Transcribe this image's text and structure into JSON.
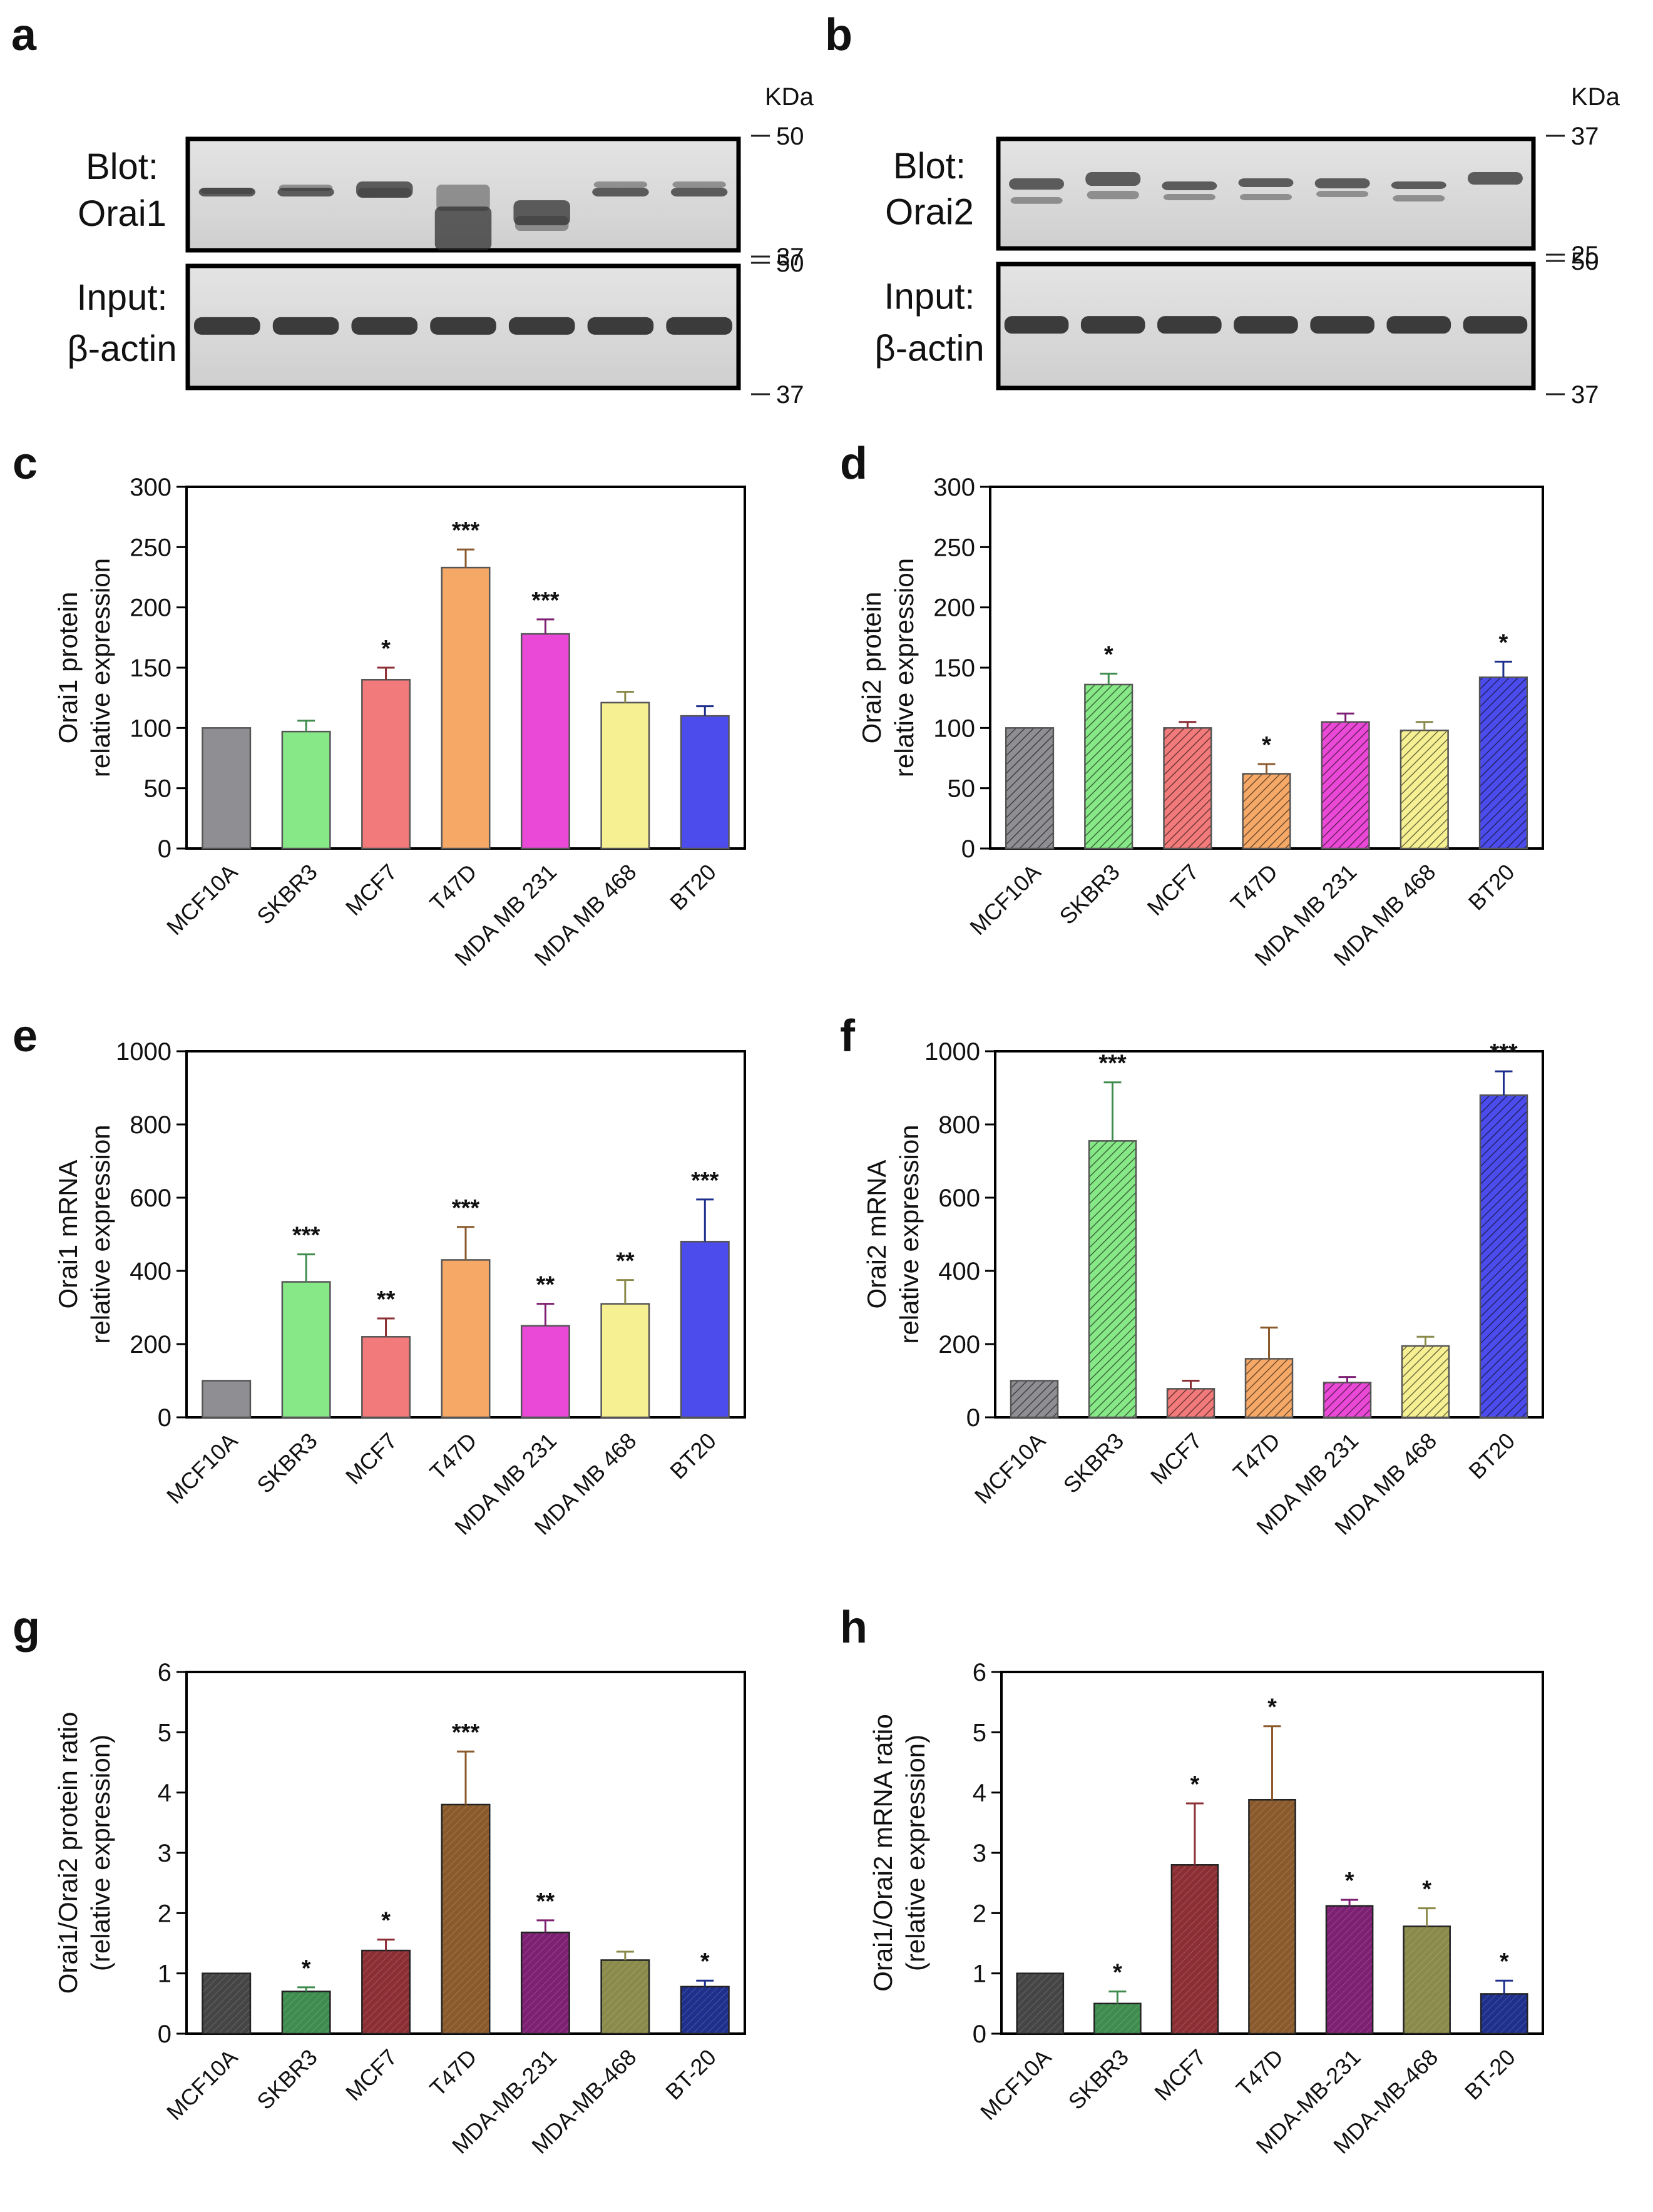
{
  "colors": {
    "MCF10A": "#8f8f93",
    "SKBR3": "#86e886",
    "MCF7": "#f27a7a",
    "T47D": "#f6a867",
    "MDA MB 231": "#ea48d6",
    "MDA MB 468": "#f6f092",
    "BT20": "#4c4cec"
  },
  "colors_dark": {
    "MCF10A": "#454545",
    "SKBR3": "#3f8c4f",
    "MCF7": "#8c2f35",
    "T47D": "#8a5a2c",
    "MDA MB 231": "#7d1f72",
    "MDA MB 468": "#8a8a4a",
    "BT20": "#1f2f8c"
  },
  "blots": [
    {
      "panel": "a",
      "kda": "KDa",
      "top": {
        "label1": "Blot:",
        "label2": "Orai1",
        "markers": [
          "50",
          "37"
        ]
      },
      "bottom": {
        "label1": "Input:",
        "label2": "β-actin",
        "markers": [
          "50",
          "37"
        ]
      }
    },
    {
      "panel": "b",
      "kda": "KDa",
      "top": {
        "label1": "Blot:",
        "label2": "Orai2",
        "markers": [
          "37",
          "25"
        ]
      },
      "bottom": {
        "label1": "Input:",
        "label2": "β-actin",
        "markers": [
          "50",
          "37"
        ]
      }
    }
  ],
  "chart_data": [
    {
      "panel": "c",
      "type": "bar",
      "ylabel": [
        "Orai1 protein",
        "relative expression"
      ],
      "ylim": [
        0,
        300
      ],
      "yticks": [
        0,
        50,
        100,
        150,
        200,
        250,
        300
      ],
      "categories": [
        "MCF10A",
        "SKBR3",
        "MCF7",
        "T47D",
        "MDA MB 231",
        "MDA MB 468",
        "BT20"
      ],
      "values": [
        100,
        97,
        140,
        233,
        178,
        121,
        110
      ],
      "errors": [
        0,
        9,
        10,
        15,
        12,
        9,
        8
      ],
      "significance": [
        "",
        "",
        "*",
        "***",
        "***",
        "",
        ""
      ],
      "style": "solid"
    },
    {
      "panel": "d",
      "type": "bar",
      "ylabel": [
        "Orai2 protein",
        "relative expression"
      ],
      "ylim": [
        0,
        300
      ],
      "yticks": [
        0,
        50,
        100,
        150,
        200,
        250,
        300
      ],
      "categories": [
        "MCF10A",
        "SKBR3",
        "MCF7",
        "T47D",
        "MDA MB 231",
        "MDA MB 468",
        "BT20"
      ],
      "values": [
        100,
        136,
        100,
        62,
        105,
        98,
        142
      ],
      "errors": [
        0,
        9,
        5,
        8,
        7,
        7,
        13
      ],
      "significance": [
        "",
        "*",
        "",
        "*",
        "",
        "",
        "*"
      ],
      "style": "hatched"
    },
    {
      "panel": "e",
      "type": "bar",
      "ylabel": [
        "Orai1 mRNA",
        "relative expression"
      ],
      "ylim": [
        0,
        1000
      ],
      "yticks": [
        0,
        200,
        400,
        600,
        800,
        1000
      ],
      "categories": [
        "MCF10A",
        "SKBR3",
        "MCF7",
        "T47D",
        "MDA MB 231",
        "MDA MB 468",
        "BT20"
      ],
      "values": [
        100,
        370,
        220,
        430,
        250,
        310,
        480
      ],
      "errors": [
        0,
        75,
        50,
        90,
        60,
        65,
        115
      ],
      "significance": [
        "",
        "***",
        "**",
        "***",
        "**",
        "**",
        "***"
      ],
      "style": "solid"
    },
    {
      "panel": "f",
      "type": "bar",
      "ylabel": [
        "Orai2 mRNA",
        "relative expression"
      ],
      "ylim": [
        0,
        1000
      ],
      "yticks": [
        0,
        200,
        400,
        600,
        800,
        1000
      ],
      "categories": [
        "MCF10A",
        "SKBR3",
        "MCF7",
        "T47D",
        "MDA MB 231",
        "MDA MB 468",
        "BT20"
      ],
      "values": [
        100,
        755,
        78,
        160,
        95,
        195,
        880
      ],
      "errors": [
        0,
        160,
        22,
        85,
        15,
        25,
        65
      ],
      "significance": [
        "",
        "***",
        "",
        "",
        "",
        "",
        "***"
      ],
      "style": "hatched"
    },
    {
      "panel": "g",
      "type": "bar",
      "ylabel": [
        "Orai1/Orai2 protein ratio",
        "(relative expression)"
      ],
      "ylim": [
        0,
        6
      ],
      "yticks": [
        0,
        1,
        2,
        3,
        4,
        5,
        6
      ],
      "categories": [
        "MCF10A",
        "SKBR3",
        "MCF7",
        "T47D",
        "MDA-MB-231",
        "MDA-MB-468",
        "BT-20"
      ],
      "values": [
        1.0,
        0.7,
        1.38,
        3.8,
        1.68,
        1.22,
        0.78
      ],
      "errors": [
        0,
        0.07,
        0.18,
        0.88,
        0.2,
        0.14,
        0.1
      ],
      "significance": [
        "",
        "*",
        "*",
        "***",
        "**",
        "",
        "*"
      ],
      "style": "dark"
    },
    {
      "panel": "h",
      "type": "bar",
      "ylabel": [
        "Orai1/Orai2 mRNA ratio",
        "(relative expression)"
      ],
      "ylim": [
        0,
        6
      ],
      "yticks": [
        0,
        1,
        2,
        3,
        4,
        5,
        6
      ],
      "categories": [
        "MCF10A",
        "SKBR3",
        "MCF7",
        "T47D",
        "MDA-MB-231",
        "MDA-MB-468",
        "BT-20"
      ],
      "values": [
        1.0,
        0.5,
        2.8,
        3.88,
        2.12,
        1.78,
        0.66
      ],
      "errors": [
        0,
        0.2,
        1.02,
        1.22,
        0.1,
        0.3,
        0.22
      ],
      "significance": [
        "",
        "*",
        "*",
        "*",
        "*",
        "*",
        "*"
      ],
      "style": "dark"
    }
  ]
}
